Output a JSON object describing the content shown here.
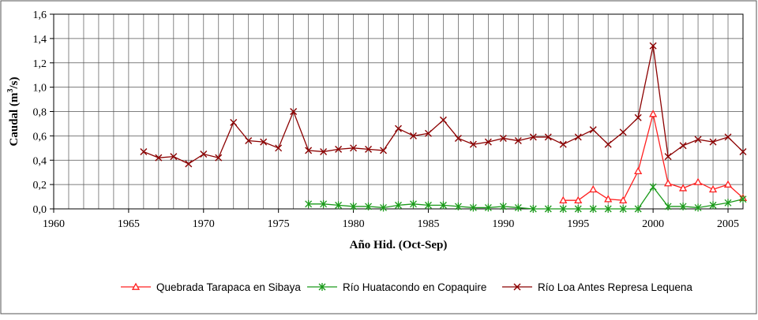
{
  "chart_data": {
    "type": "line",
    "xlabel": "Año Hid. (Oct-Sep)",
    "ylabel": "Caudal (m3/s)",
    "ylabel_parts": {
      "pre": "Caudal (m",
      "sup": "3",
      "post": "/s)"
    },
    "xlim": [
      1960,
      2006
    ],
    "ylim": [
      0,
      1.6
    ],
    "x_ticks": [
      1960,
      1965,
      1970,
      1975,
      1980,
      1985,
      1990,
      1995,
      2000,
      2005
    ],
    "x_tick_labels": [
      "1960",
      "1965",
      "1970",
      "1975",
      "1980",
      "1985",
      "1990",
      "1995",
      "2000",
      "2005"
    ],
    "y_ticks": [
      0,
      0.2,
      0.4,
      0.6,
      0.8,
      1.0,
      1.2,
      1.4,
      1.6
    ],
    "y_tick_labels": [
      "0,0",
      "0,2",
      "0,4",
      "0,6",
      "0,8",
      "1,0",
      "1,2",
      "1,4",
      "1,6"
    ],
    "grid": true,
    "legend_position": "bottom",
    "series": [
      {
        "name": "Quebrada Tarapaca en Sibaya",
        "color": "#ff2020",
        "marker": "triangle",
        "x": [
          1994,
          1995,
          1996,
          1997,
          1998,
          1999,
          2000,
          2001,
          2002,
          2003,
          2004,
          2005,
          2006
        ],
        "values": [
          0.07,
          0.07,
          0.16,
          0.08,
          0.07,
          0.31,
          0.78,
          0.21,
          0.17,
          0.22,
          0.16,
          0.2,
          0.09
        ]
      },
      {
        "name": "Río Huatacondo en Copaquire",
        "color": "#1a9a1a",
        "marker": "star",
        "x": [
          1977,
          1978,
          1979,
          1980,
          1981,
          1982,
          1983,
          1984,
          1985,
          1986,
          1987,
          1988,
          1989,
          1990,
          1991,
          1992,
          1993,
          1994,
          1995,
          1996,
          1997,
          1998,
          1999,
          2000,
          2001,
          2002,
          2003,
          2004,
          2005,
          2006
        ],
        "values": [
          0.04,
          0.04,
          0.03,
          0.02,
          0.02,
          0.01,
          0.03,
          0.04,
          0.03,
          0.03,
          0.02,
          0.01,
          0.01,
          0.02,
          0.01,
          0.0,
          0.0,
          0.0,
          0.0,
          0.0,
          0.0,
          0.0,
          0.0,
          0.18,
          0.02,
          0.02,
          0.01,
          0.03,
          0.05,
          0.08
        ]
      },
      {
        "name": "Río Loa Antes Represa Lequena",
        "color": "#8b0000",
        "marker": "x",
        "x": [
          1966,
          1967,
          1968,
          1969,
          1970,
          1971,
          1972,
          1973,
          1974,
          1975,
          1976,
          1977,
          1978,
          1979,
          1980,
          1981,
          1982,
          1983,
          1984,
          1985,
          1986,
          1987,
          1988,
          1989,
          1990,
          1991,
          1992,
          1993,
          1994,
          1995,
          1996,
          1997,
          1998,
          1999,
          2000,
          2001,
          2002,
          2003,
          2004,
          2005,
          2006
        ],
        "values": [
          0.47,
          0.42,
          0.43,
          0.37,
          0.45,
          0.42,
          0.71,
          0.56,
          0.55,
          0.5,
          0.8,
          0.48,
          0.47,
          0.49,
          0.5,
          0.49,
          0.48,
          0.66,
          0.6,
          0.62,
          0.73,
          0.58,
          0.53,
          0.55,
          0.58,
          0.56,
          0.59,
          0.59,
          0.53,
          0.59,
          0.65,
          0.53,
          0.63,
          0.75,
          1.34,
          0.43,
          0.52,
          0.57,
          0.55,
          0.59,
          0.47
        ]
      }
    ]
  }
}
